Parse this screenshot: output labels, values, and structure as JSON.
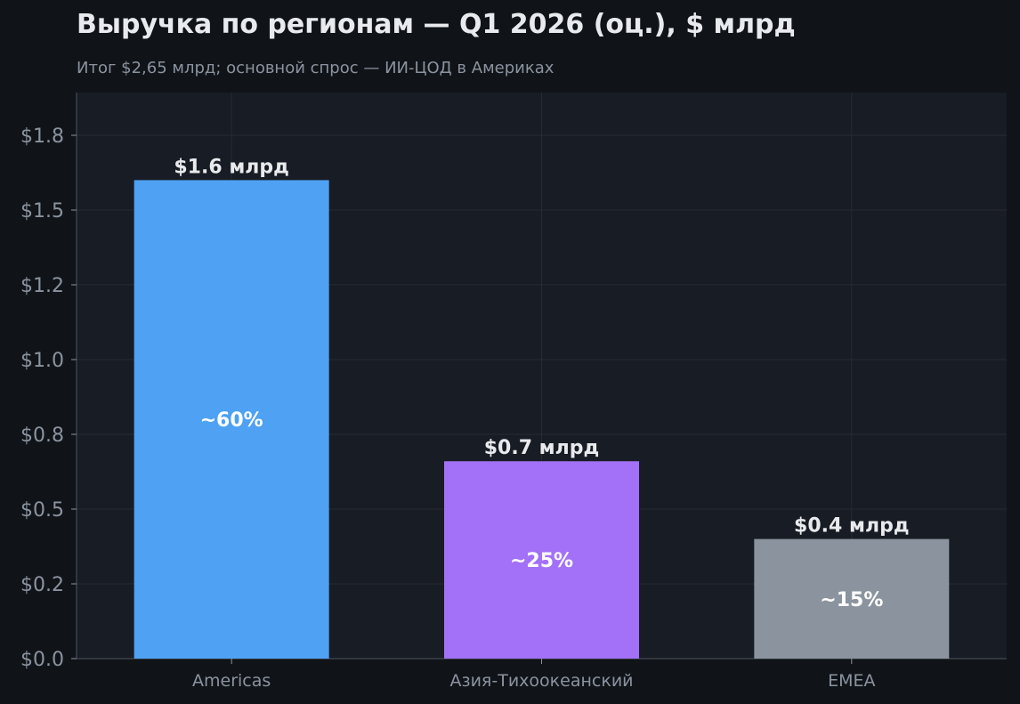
{
  "colors": {
    "background": "#101418",
    "plot_background": "#181c24",
    "grid": "#262b34",
    "axis": "#3a404a",
    "tick_text": "#8b93a0",
    "label_text": "#e8eaed"
  },
  "chart_data": {
    "type": "bar",
    "title": "Выручка по регионам — Q1 2026 (оц.), $ млрд",
    "subtitle": "Итог $2,65 млрд; основной спрос — ИИ-ЦОД в Америках",
    "xlabel": "",
    "ylabel": "",
    "categories": [
      "Americas",
      "Азия-Тихоокеанский",
      "EMEA"
    ],
    "values": [
      1.6,
      0.66,
      0.4
    ],
    "value_labels": [
      "$1.6 млрд",
      "$0.7 млрд",
      "$0.4 млрд"
    ],
    "share_labels": [
      "~60%",
      "~25%",
      "~15%"
    ],
    "bar_colors": [
      "#4ea1f3",
      "#a371f7",
      "#8b949e"
    ],
    "ylim": [
      0,
      1.75
    ],
    "yticks": [
      0,
      0.25,
      0.5,
      0.75,
      1.0,
      1.25,
      1.5,
      1.75
    ],
    "ytick_labels": [
      "$0.0",
      "$0.2",
      "$0.5",
      "$0.8",
      "$1.0",
      "$1.2",
      "$1.5",
      "$1.8"
    ],
    "grid": true,
    "legend": "none"
  }
}
